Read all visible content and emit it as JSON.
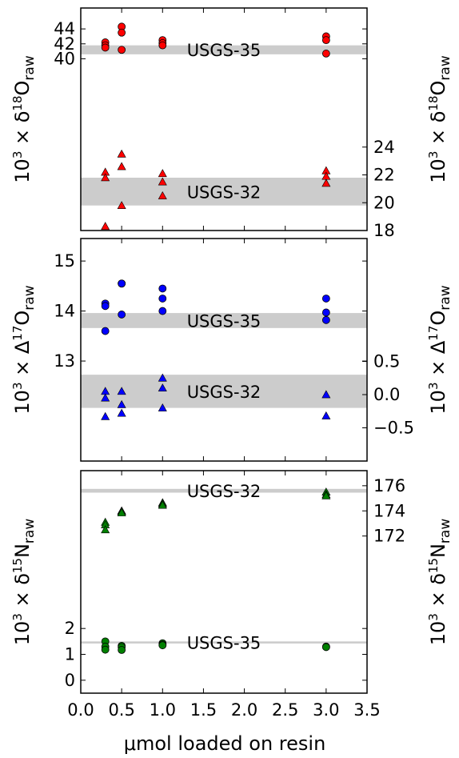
{
  "chart_data": {
    "type": "scatter",
    "xlabel": "μmol loaded on resin",
    "x_ticks": [
      0.0,
      0.5,
      1.0,
      1.5,
      2.0,
      2.5,
      3.0,
      3.5
    ],
    "x_tick_labels": [
      "0.0",
      "0.5",
      "1.0",
      "1.5",
      "2.0",
      "2.5",
      "3.0",
      "3.5"
    ],
    "xlim": [
      0,
      3.5
    ],
    "panels": [
      {
        "ylabel_left": {
          "pre": "10",
          "exp": "3",
          "mid": " × δ",
          "sup2": "18",
          "main": "O",
          "sub": "raw"
        },
        "ylabel_right": {
          "pre": "10",
          "exp": "3",
          "mid": " × δ",
          "sup2": "18",
          "main": "O",
          "sub": "raw"
        },
        "left_axis": {
          "ylim": [
            17.0,
            46.8
          ],
          "ticks": [
            40,
            42,
            44
          ],
          "labels": [
            "40",
            "42",
            "44"
          ]
        },
        "right_axis": {
          "ylim": [
            18.0,
            34.0
          ],
          "ticks": [
            18,
            20,
            22,
            24
          ],
          "labels": [
            "18",
            "20",
            "22",
            "24"
          ]
        },
        "bands": [
          {
            "label": "USGS-35",
            "axis": "left",
            "low": 40.6,
            "high": 41.8
          },
          {
            "label": "USGS-32",
            "axis": "right",
            "low": 19.8,
            "high": 21.8
          }
        ],
        "series": [
          {
            "axis": "left",
            "marker": "circle",
            "color": "#ff0000",
            "x": [
              0.3,
              0.3,
              0.3,
              0.5,
              0.5,
              0.5,
              1.0,
              1.0,
              1.0,
              3.0,
              3.0,
              3.0
            ],
            "y": [
              42.2,
              41.8,
              41.5,
              44.3,
              43.5,
              41.2,
              42.5,
              42.1,
              41.8,
              43.0,
              42.5,
              40.7
            ]
          },
          {
            "axis": "right",
            "marker": "triangle",
            "color": "#ff0000",
            "x": [
              0.3,
              0.3,
              0.3,
              0.5,
              0.5,
              0.5,
              1.0,
              1.0,
              1.0,
              3.0,
              3.0,
              3.0
            ],
            "y": [
              22.2,
              21.8,
              18.3,
              23.5,
              22.6,
              19.8,
              22.1,
              21.5,
              20.5,
              22.3,
              21.9,
              21.4
            ]
          }
        ]
      },
      {
        "ylabel_left": {
          "pre": "10",
          "exp": "3",
          "mid": " × Δ",
          "sup2": "17",
          "main": "O",
          "sub": "raw"
        },
        "ylabel_right": {
          "pre": "10",
          "exp": "3",
          "mid": " × Δ",
          "sup2": "17",
          "main": "O",
          "sub": "raw"
        },
        "left_axis": {
          "ylim": [
            11.0,
            15.45
          ],
          "ticks": [
            13,
            14,
            15
          ],
          "labels": [
            "13",
            "14",
            "15"
          ]
        },
        "right_axis": {
          "ylim": [
            -1.0,
            2.35
          ],
          "ticks": [
            -0.5,
            0.0,
            0.5
          ],
          "labels": [
            "−0.5",
            "0.0",
            "0.5"
          ]
        },
        "bands": [
          {
            "label": "USGS-35",
            "axis": "left",
            "low": 13.66,
            "high": 13.96
          },
          {
            "label": "USGS-32",
            "axis": "right",
            "low": -0.2,
            "high": 0.3
          }
        ],
        "series": [
          {
            "axis": "left",
            "marker": "circle",
            "color": "#0000ff",
            "x": [
              0.3,
              0.3,
              0.3,
              0.5,
              0.5,
              0.5,
              1.0,
              1.0,
              1.0,
              3.0,
              3.0,
              3.0
            ],
            "y": [
              14.15,
              14.1,
              13.6,
              14.55,
              14.55,
              13.93,
              14.45,
              14.25,
              14.0,
              14.25,
              13.97,
              13.82
            ]
          },
          {
            "axis": "right",
            "marker": "triangle",
            "color": "#0000ff",
            "x": [
              0.3,
              0.3,
              0.3,
              0.5,
              0.5,
              0.5,
              1.0,
              1.0,
              1.0,
              3.0,
              3.0
            ],
            "y": [
              0.05,
              -0.05,
              -0.33,
              0.05,
              -0.15,
              -0.28,
              0.25,
              0.1,
              -0.2,
              0.0,
              -0.32
            ]
          }
        ]
      },
      {
        "ylabel_left": {
          "pre": "10",
          "exp": "3",
          "mid": " × δ",
          "sup2": "15",
          "main": "N",
          "sub": "raw"
        },
        "ylabel_right": {
          "pre": "10",
          "exp": "3",
          "mid": " × δ",
          "sup2": "15",
          "main": "N",
          "sub": "raw"
        },
        "left_axis": {
          "ylim": [
            -0.5,
            8.1
          ],
          "ticks": [
            0,
            1,
            2
          ],
          "labels": [
            "0",
            "1",
            "2"
          ]
        },
        "right_axis": {
          "ylim": [
            159.5,
            177.2
          ],
          "ticks": [
            172,
            174,
            176
          ],
          "labels": [
            "172",
            "174",
            "176"
          ]
        },
        "bands": [
          {
            "label": "USGS-32",
            "axis": "right",
            "low": 175.45,
            "high": 175.75
          },
          {
            "label": "USGS-35",
            "axis": "left",
            "low": 1.42,
            "high": 1.5
          }
        ],
        "series": [
          {
            "axis": "right",
            "marker": "triangle",
            "color": "#008000",
            "x": [
              0.3,
              0.3,
              0.3,
              0.5,
              0.5,
              0.5,
              1.0,
              1.0,
              1.0,
              3.0,
              3.0,
              3.0
            ],
            "y": [
              173.1,
              172.9,
              172.5,
              174.0,
              173.95,
              173.85,
              174.65,
              174.55,
              174.45,
              175.5,
              175.3,
              175.2
            ]
          },
          {
            "axis": "left",
            "marker": "circle",
            "color": "#008000",
            "x": [
              0.3,
              0.3,
              0.3,
              0.5,
              0.5,
              0.5,
              1.0,
              1.0,
              1.0,
              3.0,
              3.0
            ],
            "y": [
              1.5,
              1.3,
              1.18,
              1.33,
              1.28,
              1.17,
              1.43,
              1.38,
              1.35,
              1.3,
              1.28
            ]
          }
        ]
      }
    ]
  }
}
